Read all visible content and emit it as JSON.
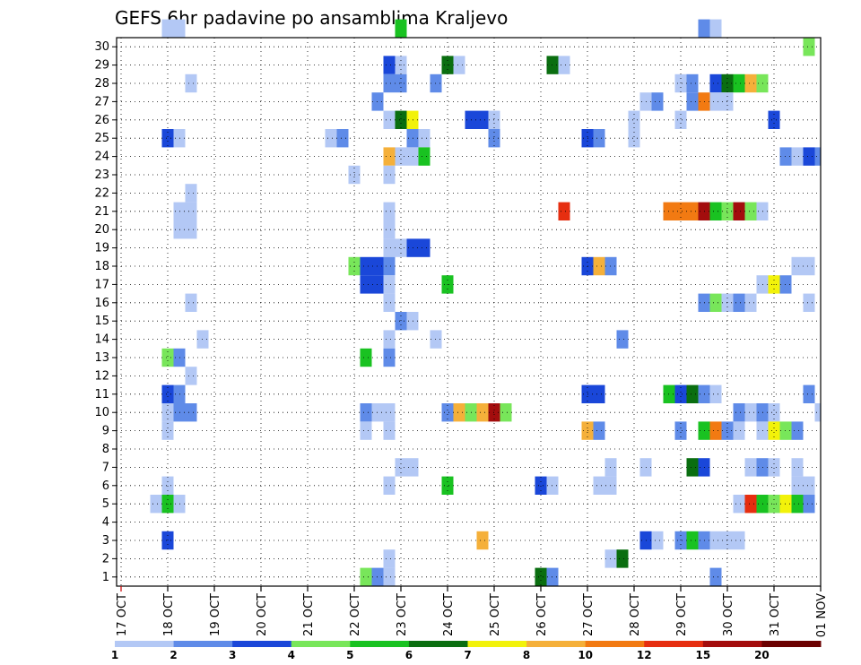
{
  "chart_data": {
    "type": "heatmap",
    "title": "GEFS 6hr padavine po ansamblima Kraljevo",
    "y_ticks": [
      "1",
      "2",
      "3",
      "4",
      "5",
      "6",
      "7",
      "8",
      "9",
      "10",
      "11",
      "12",
      "13",
      "14",
      "15",
      "16",
      "17",
      "18",
      "19",
      "20",
      "21",
      "22",
      "23",
      "24",
      "25",
      "26",
      "27",
      "28",
      "29",
      "30"
    ],
    "x_ticks": [
      {
        "label": "17 OCT",
        "step": 0
      },
      {
        "label": "18 OCT",
        "step": 4
      },
      {
        "label": "19 OCT",
        "step": 8
      },
      {
        "label": "20 OCT",
        "step": 12
      },
      {
        "label": "21 OCT",
        "step": 16
      },
      {
        "label": "22 OCT",
        "step": 20
      },
      {
        "label": "23 OCT",
        "step": 24
      },
      {
        "label": "24 OCT",
        "step": 28
      },
      {
        "label": "25 OCT",
        "step": 32
      },
      {
        "label": "26 OCT",
        "step": 36
      },
      {
        "label": "27 OCT",
        "step": 40
      },
      {
        "label": "28 OCT",
        "step": 44
      },
      {
        "label": "29 OCT",
        "step": 48
      },
      {
        "label": "30 OCT",
        "step": 52
      },
      {
        "label": "31 OCT",
        "step": 56
      },
      {
        "label": "01 NOV",
        "step": 60
      }
    ],
    "x_range_steps": [
      0,
      60
    ],
    "y_range_members": [
      0,
      30
    ],
    "x_step_hours": 6,
    "legend": {
      "labels": [
        "1",
        "2",
        "3",
        "4",
        "5",
        "6",
        "7",
        "8",
        "10",
        "12",
        "15",
        "20"
      ],
      "colors": [
        "#b3c8f5",
        "#5f8be8",
        "#1a47d9",
        "#78e65a",
        "#19c221",
        "#0a6e10",
        "#f2f20a",
        "#f5b03a",
        "#f27a12",
        "#e62e10",
        "#a30d0d",
        "#6b0000"
      ]
    },
    "cells": [
      {
        "m": 30,
        "s": [
          4,
          5
        ],
        "c": 0
      },
      {
        "m": 30,
        "s": [
          24
        ],
        "c": 4
      },
      {
        "m": 30,
        "s": [
          50
        ],
        "c": 1
      },
      {
        "m": 30,
        "s": [
          51
        ],
        "c": 0
      },
      {
        "m": 29,
        "s": [
          59
        ],
        "c": 3
      },
      {
        "m": 28,
        "s": [
          23
        ],
        "c": 2
      },
      {
        "m": 28,
        "s": [
          24
        ],
        "c": 0
      },
      {
        "m": 28,
        "s": [
          28
        ],
        "c": 5
      },
      {
        "m": 28,
        "s": [
          29
        ],
        "c": 0
      },
      {
        "m": 28,
        "s": [
          37
        ],
        "c": 5
      },
      {
        "m": 28,
        "s": [
          38
        ],
        "c": 0
      },
      {
        "m": 27,
        "s": [
          6
        ],
        "c": 0
      },
      {
        "m": 27,
        "s": [
          23,
          24
        ],
        "c": 1
      },
      {
        "m": 27,
        "s": [
          27
        ],
        "c": 1
      },
      {
        "m": 27,
        "s": [
          48
        ],
        "c": 0
      },
      {
        "m": 27,
        "s": [
          49
        ],
        "c": 1
      },
      {
        "m": 27,
        "s": [
          51
        ],
        "c": 2
      },
      {
        "m": 27,
        "s": [
          52
        ],
        "c": 5
      },
      {
        "m": 27,
        "s": [
          53
        ],
        "c": 4
      },
      {
        "m": 27,
        "s": [
          54
        ],
        "c": 7
      },
      {
        "m": 27,
        "s": [
          55
        ],
        "c": 3
      },
      {
        "m": 26,
        "s": [
          22
        ],
        "c": 1
      },
      {
        "m": 26,
        "s": [
          45
        ],
        "c": 0
      },
      {
        "m": 26,
        "s": [
          46
        ],
        "c": 1
      },
      {
        "m": 26,
        "s": [
          49
        ],
        "c": 1
      },
      {
        "m": 26,
        "s": [
          50
        ],
        "c": 8
      },
      {
        "m": 26,
        "s": [
          51,
          52
        ],
        "c": 0
      },
      {
        "m": 25,
        "s": [
          23
        ],
        "c": 0
      },
      {
        "m": 25,
        "s": [
          24
        ],
        "c": 5
      },
      {
        "m": 25,
        "s": [
          25
        ],
        "c": 6
      },
      {
        "m": 25,
        "s": [
          30,
          31
        ],
        "c": 2
      },
      {
        "m": 25,
        "s": [
          32
        ],
        "c": 0
      },
      {
        "m": 25,
        "s": [
          44
        ],
        "c": 0
      },
      {
        "m": 25,
        "s": [
          48
        ],
        "c": 0
      },
      {
        "m": 25,
        "s": [
          56
        ],
        "c": 2
      },
      {
        "m": 24,
        "s": [
          4
        ],
        "c": 2
      },
      {
        "m": 24,
        "s": [
          5
        ],
        "c": 0
      },
      {
        "m": 24,
        "s": [
          18
        ],
        "c": 0
      },
      {
        "m": 24,
        "s": [
          19
        ],
        "c": 1
      },
      {
        "m": 24,
        "s": [
          25
        ],
        "c": 1
      },
      {
        "m": 24,
        "s": [
          26
        ],
        "c": 0
      },
      {
        "m": 24,
        "s": [
          32
        ],
        "c": 1
      },
      {
        "m": 24,
        "s": [
          40
        ],
        "c": 2
      },
      {
        "m": 24,
        "s": [
          41
        ],
        "c": 1
      },
      {
        "m": 24,
        "s": [
          44
        ],
        "c": 0
      },
      {
        "m": 23,
        "s": [
          23
        ],
        "c": 7
      },
      {
        "m": 23,
        "s": [
          24,
          25
        ],
        "c": 0
      },
      {
        "m": 23,
        "s": [
          26
        ],
        "c": 4
      },
      {
        "m": 23,
        "s": [
          57
        ],
        "c": 1
      },
      {
        "m": 23,
        "s": [
          58
        ],
        "c": 0
      },
      {
        "m": 23,
        "s": [
          59
        ],
        "c": 2
      },
      {
        "m": 23,
        "s": [
          60
        ],
        "c": 1
      },
      {
        "m": 22,
        "s": [
          20
        ],
        "c": 0
      },
      {
        "m": 22,
        "s": [
          23
        ],
        "c": 0
      },
      {
        "m": 21,
        "s": [
          6
        ],
        "c": 0
      },
      {
        "m": 20,
        "s": [
          5,
          6
        ],
        "c": 0
      },
      {
        "m": 20,
        "s": [
          23
        ],
        "c": 0
      },
      {
        "m": 20,
        "s": [
          38
        ],
        "c": 9
      },
      {
        "m": 20,
        "s": [
          47,
          48,
          49
        ],
        "c": 8
      },
      {
        "m": 20,
        "s": [
          50
        ],
        "c": 10
      },
      {
        "m": 20,
        "s": [
          51
        ],
        "c": 4
      },
      {
        "m": 20,
        "s": [
          52
        ],
        "c": 3
      },
      {
        "m": 20,
        "s": [
          53
        ],
        "c": 10
      },
      {
        "m": 20,
        "s": [
          54
        ],
        "c": 3
      },
      {
        "m": 20,
        "s": [
          55
        ],
        "c": 0
      },
      {
        "m": 19,
        "s": [
          5,
          6
        ],
        "c": 0
      },
      {
        "m": 19,
        "s": [
          23
        ],
        "c": 0
      },
      {
        "m": 18,
        "s": [
          23,
          24
        ],
        "c": 0
      },
      {
        "m": 18,
        "s": [
          25,
          26
        ],
        "c": 2
      },
      {
        "m": 17,
        "s": [
          20
        ],
        "c": 3
      },
      {
        "m": 17,
        "s": [
          21,
          22
        ],
        "c": 2
      },
      {
        "m": 17,
        "s": [
          23
        ],
        "c": 1
      },
      {
        "m": 17,
        "s": [
          40
        ],
        "c": 2
      },
      {
        "m": 17,
        "s": [
          41
        ],
        "c": 7
      },
      {
        "m": 17,
        "s": [
          42
        ],
        "c": 1
      },
      {
        "m": 17,
        "s": [
          58,
          59
        ],
        "c": 0
      },
      {
        "m": 16,
        "s": [
          21,
          22
        ],
        "c": 2
      },
      {
        "m": 16,
        "s": [
          23
        ],
        "c": 0
      },
      {
        "m": 16,
        "s": [
          28
        ],
        "c": 4
      },
      {
        "m": 16,
        "s": [
          55
        ],
        "c": 0
      },
      {
        "m": 16,
        "s": [
          56
        ],
        "c": 6
      },
      {
        "m": 16,
        "s": [
          57
        ],
        "c": 1
      },
      {
        "m": 15,
        "s": [
          6
        ],
        "c": 0
      },
      {
        "m": 15,
        "s": [
          23
        ],
        "c": 0
      },
      {
        "m": 15,
        "s": [
          50
        ],
        "c": 1
      },
      {
        "m": 15,
        "s": [
          51
        ],
        "c": 3
      },
      {
        "m": 15,
        "s": [
          52
        ],
        "c": 0
      },
      {
        "m": 15,
        "s": [
          53
        ],
        "c": 1
      },
      {
        "m": 15,
        "s": [
          54
        ],
        "c": 0
      },
      {
        "m": 15,
        "s": [
          59
        ],
        "c": 0
      },
      {
        "m": 14,
        "s": [
          24
        ],
        "c": 1
      },
      {
        "m": 14,
        "s": [
          25
        ],
        "c": 0
      },
      {
        "m": 13,
        "s": [
          7
        ],
        "c": 0
      },
      {
        "m": 13,
        "s": [
          23
        ],
        "c": 0
      },
      {
        "m": 13,
        "s": [
          27
        ],
        "c": 0
      },
      {
        "m": 13,
        "s": [
          43
        ],
        "c": 1
      },
      {
        "m": 12,
        "s": [
          4
        ],
        "c": 3
      },
      {
        "m": 12,
        "s": [
          5
        ],
        "c": 1
      },
      {
        "m": 12,
        "s": [
          21
        ],
        "c": 4
      },
      {
        "m": 12,
        "s": [
          23
        ],
        "c": 1
      },
      {
        "m": 11,
        "s": [
          6
        ],
        "c": 0
      },
      {
        "m": 10,
        "s": [
          4
        ],
        "c": 2
      },
      {
        "m": 10,
        "s": [
          5
        ],
        "c": 1
      },
      {
        "m": 10,
        "s": [
          40,
          41
        ],
        "c": 2
      },
      {
        "m": 10,
        "s": [
          47
        ],
        "c": 4
      },
      {
        "m": 10,
        "s": [
          48
        ],
        "c": 2
      },
      {
        "m": 10,
        "s": [
          49
        ],
        "c": 5
      },
      {
        "m": 10,
        "s": [
          50
        ],
        "c": 1
      },
      {
        "m": 10,
        "s": [
          51
        ],
        "c": 0
      },
      {
        "m": 10,
        "s": [
          59
        ],
        "c": 1
      },
      {
        "m": 9,
        "s": [
          4
        ],
        "c": 0
      },
      {
        "m": 9,
        "s": [
          5,
          6
        ],
        "c": 1
      },
      {
        "m": 9,
        "s": [
          21
        ],
        "c": 1
      },
      {
        "m": 9,
        "s": [
          22,
          23
        ],
        "c": 0
      },
      {
        "m": 9,
        "s": [
          28
        ],
        "c": 1
      },
      {
        "m": 9,
        "s": [
          29
        ],
        "c": 7
      },
      {
        "m": 9,
        "s": [
          30
        ],
        "c": 3
      },
      {
        "m": 9,
        "s": [
          31
        ],
        "c": 7
      },
      {
        "m": 9,
        "s": [
          32
        ],
        "c": 10
      },
      {
        "m": 9,
        "s": [
          33
        ],
        "c": 3
      },
      {
        "m": 9,
        "s": [
          53
        ],
        "c": 1
      },
      {
        "m": 9,
        "s": [
          54
        ],
        "c": 0
      },
      {
        "m": 9,
        "s": [
          55
        ],
        "c": 1
      },
      {
        "m": 9,
        "s": [
          56
        ],
        "c": 0
      },
      {
        "m": 9,
        "s": [
          60
        ],
        "c": 0
      },
      {
        "m": 8,
        "s": [
          4
        ],
        "c": 0
      },
      {
        "m": 8,
        "s": [
          21
        ],
        "c": 0
      },
      {
        "m": 8,
        "s": [
          23
        ],
        "c": 0
      },
      {
        "m": 8,
        "s": [
          40
        ],
        "c": 7
      },
      {
        "m": 8,
        "s": [
          41
        ],
        "c": 1
      },
      {
        "m": 8,
        "s": [
          48
        ],
        "c": 1
      },
      {
        "m": 8,
        "s": [
          50
        ],
        "c": 4
      },
      {
        "m": 8,
        "s": [
          51
        ],
        "c": 8
      },
      {
        "m": 8,
        "s": [
          52
        ],
        "c": 1
      },
      {
        "m": 8,
        "s": [
          53
        ],
        "c": 0
      },
      {
        "m": 8,
        "s": [
          55
        ],
        "c": 0
      },
      {
        "m": 8,
        "s": [
          56
        ],
        "c": 6
      },
      {
        "m": 8,
        "s": [
          57
        ],
        "c": 3
      },
      {
        "m": 8,
        "s": [
          58
        ],
        "c": 1
      },
      {
        "m": 6,
        "s": [
          24,
          25
        ],
        "c": 0
      },
      {
        "m": 6,
        "s": [
          42
        ],
        "c": 0
      },
      {
        "m": 6,
        "s": [
          45
        ],
        "c": 0
      },
      {
        "m": 6,
        "s": [
          49
        ],
        "c": 5
      },
      {
        "m": 6,
        "s": [
          50
        ],
        "c": 2
      },
      {
        "m": 6,
        "s": [
          54
        ],
        "c": 0
      },
      {
        "m": 6,
        "s": [
          55
        ],
        "c": 1
      },
      {
        "m": 6,
        "s": [
          56
        ],
        "c": 0
      },
      {
        "m": 6,
        "s": [
          58
        ],
        "c": 0
      },
      {
        "m": 5,
        "s": [
          4
        ],
        "c": 0
      },
      {
        "m": 5,
        "s": [
          23
        ],
        "c": 0
      },
      {
        "m": 5,
        "s": [
          28
        ],
        "c": 4
      },
      {
        "m": 5,
        "s": [
          36
        ],
        "c": 2
      },
      {
        "m": 5,
        "s": [
          37
        ],
        "c": 0
      },
      {
        "m": 5,
        "s": [
          41,
          42
        ],
        "c": 0
      },
      {
        "m": 5,
        "s": [
          58,
          59
        ],
        "c": 0
      },
      {
        "m": 4,
        "s": [
          3
        ],
        "c": 0
      },
      {
        "m": 4,
        "s": [
          4
        ],
        "c": 4
      },
      {
        "m": 4,
        "s": [
          5
        ],
        "c": 0
      },
      {
        "m": 4,
        "s": [
          53
        ],
        "c": 0
      },
      {
        "m": 4,
        "s": [
          54
        ],
        "c": 9
      },
      {
        "m": 4,
        "s": [
          55
        ],
        "c": 4
      },
      {
        "m": 4,
        "s": [
          56
        ],
        "c": 3
      },
      {
        "m": 4,
        "s": [
          57
        ],
        "c": 6
      },
      {
        "m": 4,
        "s": [
          58
        ],
        "c": 4
      },
      {
        "m": 4,
        "s": [
          59
        ],
        "c": 1
      },
      {
        "m": 2,
        "s": [
          4
        ],
        "c": 2
      },
      {
        "m": 2,
        "s": [
          31
        ],
        "c": 7
      },
      {
        "m": 2,
        "s": [
          45
        ],
        "c": 2
      },
      {
        "m": 2,
        "s": [
          46
        ],
        "c": 0
      },
      {
        "m": 2,
        "s": [
          48
        ],
        "c": 1
      },
      {
        "m": 2,
        "s": [
          49
        ],
        "c": 4
      },
      {
        "m": 2,
        "s": [
          50
        ],
        "c": 1
      },
      {
        "m": 2,
        "s": [
          51,
          52,
          53
        ],
        "c": 0
      },
      {
        "m": 1,
        "s": [
          23
        ],
        "c": 0
      },
      {
        "m": 1,
        "s": [
          42
        ],
        "c": 0
      },
      {
        "m": 1,
        "s": [
          43
        ],
        "c": 5
      },
      {
        "m": 0,
        "s": [
          21
        ],
        "c": 3
      },
      {
        "m": 0,
        "s": [
          22
        ],
        "c": 1
      },
      {
        "m": 0,
        "s": [
          23
        ],
        "c": 0
      },
      {
        "m": 0,
        "s": [
          36
        ],
        "c": 5
      },
      {
        "m": 0,
        "s": [
          37
        ],
        "c": 1
      },
      {
        "m": 0,
        "s": [
          51
        ],
        "c": 1
      }
    ]
  }
}
